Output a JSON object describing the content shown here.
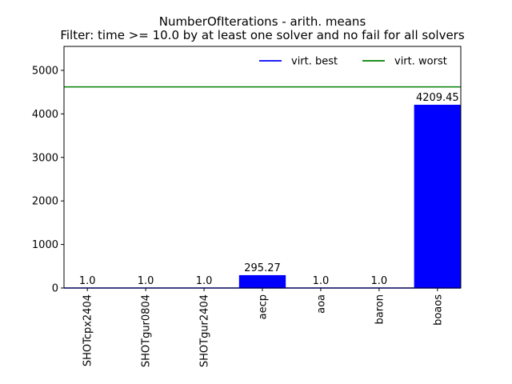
{
  "chart_data": {
    "type": "bar",
    "title": "NumberOfIterations - arith. means",
    "subtitle": "Filter: time >= 10.0 by at least one solver and no fail for all solvers",
    "categories": [
      "SHOTcpx2404",
      "SHOTgur0804",
      "SHOTgur2404",
      "aecp",
      "aoa",
      "baron",
      "boaos"
    ],
    "values": [
      1.0,
      1.0,
      1.0,
      295.27,
      1.0,
      1.0,
      4209.45
    ],
    "value_labels": [
      "1.0",
      "1.0",
      "1.0",
      "295.27",
      "1.0",
      "1.0",
      "4209.45"
    ],
    "bar_color": "#0000ff",
    "ylim": [
      0,
      5550
    ],
    "yticks": [
      0,
      1000,
      2000,
      3000,
      4000,
      5000
    ],
    "ytick_labels": [
      "0",
      "1000",
      "2000",
      "3000",
      "4000",
      "5000"
    ],
    "xlabel": "",
    "ylabel": "",
    "grid": false,
    "legend_position": "top-right",
    "reference_lines": [
      {
        "name": "virt. best",
        "value": 1.0,
        "color": "#0000ff"
      },
      {
        "name": "virt. worst",
        "value": 4620,
        "color": "#008000"
      }
    ]
  }
}
